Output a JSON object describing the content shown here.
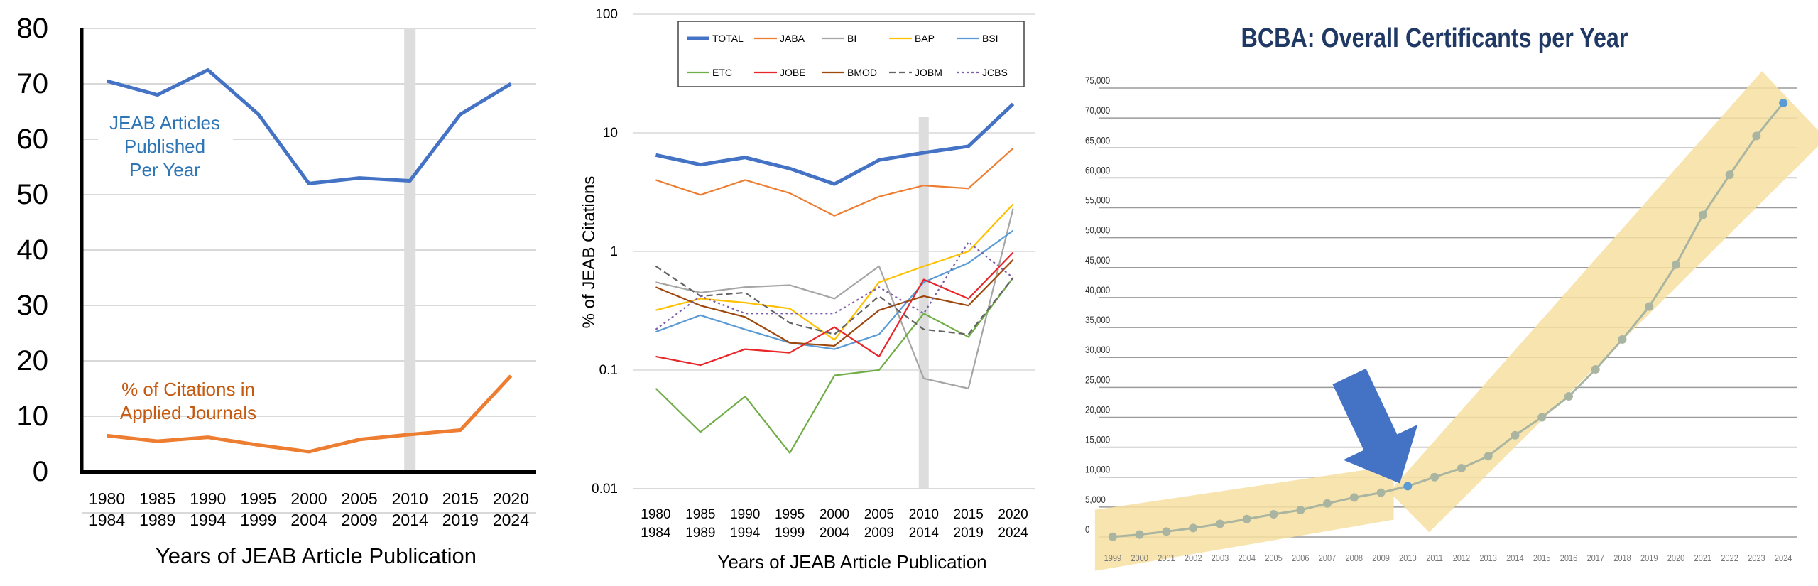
{
  "colors": {
    "jeab_blue": "#4472C4",
    "orange": "#ED7D31",
    "annot_blue": "#2E75B6",
    "annot_orange": "#C55A11",
    "gray": "#A5A5A5",
    "gold": "#FFC000",
    "light_blue": "#5B9BD5",
    "green": "#70AD47",
    "red": "#E8262A",
    "brown": "#9E480E",
    "dark_gray": "#636363",
    "purple": "#7B5EA7",
    "bcba_title": "#1F3864",
    "bcba_point": "#A9B5A0",
    "highlight": "#F7DFA0",
    "arrow": "#4472C4"
  },
  "chart_data": [
    {
      "type": "line",
      "categories": [
        "1980\n1984",
        "1985\n1989",
        "1990\n1994",
        "1995\n1999",
        "2000\n2004",
        "2005\n2009",
        "2010\n2014",
        "2015\n2019",
        "2020\n2024"
      ],
      "category_lines": [
        [
          "1980",
          "1984"
        ],
        [
          "1985",
          "1989"
        ],
        [
          "1990",
          "1994"
        ],
        [
          "1995",
          "1999"
        ],
        [
          "2000",
          "2004"
        ],
        [
          "2005",
          "2009"
        ],
        [
          "2010",
          "2014"
        ],
        [
          "2015",
          "2019"
        ],
        [
          "2020",
          "2024"
        ]
      ],
      "series": [
        {
          "values": [
            70.5,
            68,
            72.5,
            64.5,
            52,
            53,
            52.5,
            64.5,
            70
          ]
        },
        {
          "values": [
            6.5,
            5.5,
            6.2,
            4.8,
            3.6,
            5.8,
            6.7,
            7.5,
            17.3
          ]
        }
      ],
      "yticks": [
        0,
        10,
        20,
        30,
        40,
        50,
        60,
        70,
        80
      ],
      "ylim": [
        0,
        80
      ],
      "xlabel": "Years of JEAB Article Publication",
      "ylabel": "",
      "grid": true,
      "highlight_category": "2010\n2014",
      "annotations": [
        {
          "lines": [
            "JEAB Articles",
            "Published",
            "Per Year"
          ]
        },
        {
          "lines": [
            "% of Citations in",
            "Applied Journals"
          ]
        }
      ]
    },
    {
      "type": "line",
      "y_scale": "log",
      "categories": [
        "1980\n1984",
        "1985\n1989",
        "1990\n1994",
        "1995\n1999",
        "2000\n2004",
        "2005\n2009",
        "2010\n2014",
        "2015\n2019",
        "2020\n2024"
      ],
      "category_lines": [
        [
          "1980",
          "1984"
        ],
        [
          "1985",
          "1989"
        ],
        [
          "1990",
          "1994"
        ],
        [
          "1995",
          "1999"
        ],
        [
          "2000",
          "2004"
        ],
        [
          "2005",
          "2009"
        ],
        [
          "2010",
          "2014"
        ],
        [
          "2015",
          "2019"
        ],
        [
          "2020",
          "2024"
        ]
      ],
      "yticks": [
        0.01,
        0.1,
        1,
        10,
        100
      ],
      "ytick_labels": [
        "0.01",
        "0.1",
        "1",
        "10",
        "100"
      ],
      "ylim": [
        0.01,
        100
      ],
      "xlabel": "Years of JEAB Article Publication",
      "ylabel": "% of JEAB Citations",
      "grid": true,
      "legend_position": "top",
      "highlight_category": "2010\n2014",
      "series": [
        {
          "name": "TOTAL",
          "values": [
            6.5,
            5.4,
            6.2,
            5.0,
            3.7,
            5.9,
            6.8,
            7.7,
            17.5
          ]
        },
        {
          "name": "JABA",
          "values": [
            4.0,
            3.0,
            4.0,
            3.1,
            2.0,
            2.9,
            3.6,
            3.4,
            7.4
          ]
        },
        {
          "name": "BI",
          "values": [
            0.55,
            0.45,
            0.5,
            0.52,
            0.4,
            0.75,
            0.085,
            0.07,
            2.3
          ]
        },
        {
          "name": "BAP",
          "values": [
            0.32,
            0.4,
            0.37,
            0.33,
            0.18,
            0.55,
            0.75,
            1.0,
            2.5
          ]
        },
        {
          "name": "BSI",
          "values": [
            0.21,
            0.29,
            0.22,
            0.17,
            0.15,
            0.2,
            0.55,
            0.8,
            1.5
          ]
        },
        {
          "name": "ETC",
          "values": [
            0.07,
            0.03,
            0.06,
            0.02,
            0.09,
            0.1,
            0.3,
            0.19,
            0.6
          ]
        },
        {
          "name": "JOBE",
          "values": [
            0.13,
            0.11,
            0.15,
            0.14,
            0.23,
            0.13,
            0.58,
            0.4,
            0.98
          ]
        },
        {
          "name": "BMOD",
          "values": [
            0.5,
            0.35,
            0.28,
            0.17,
            0.16,
            0.32,
            0.42,
            0.35,
            0.85
          ]
        },
        {
          "name": "JOBM",
          "values": [
            0.75,
            0.42,
            0.45,
            0.25,
            0.2,
            0.42,
            0.22,
            0.2,
            0.6
          ]
        },
        {
          "name": "JCBS",
          "values": [
            0.22,
            0.42,
            0.3,
            0.3,
            0.3,
            0.5,
            0.3,
            1.2,
            0.6
          ]
        }
      ]
    },
    {
      "type": "line",
      "title": "BCBA: Overall Certificants per Year",
      "categories": [
        "1999",
        "2000",
        "2001",
        "2002",
        "2003",
        "2004",
        "2005",
        "2006",
        "2007",
        "2008",
        "2009",
        "2010",
        "2011",
        "2012",
        "2013",
        "2014",
        "2015",
        "2016",
        "2017",
        "2018",
        "2019",
        "2020",
        "2021",
        "2022",
        "2023",
        "2024"
      ],
      "values": [
        30,
        400,
        900,
        1500,
        2200,
        3000,
        3800,
        4500,
        5600,
        6600,
        7400,
        8500,
        10000,
        11500,
        13500,
        17000,
        20000,
        23500,
        28000,
        33000,
        38500,
        45500,
        53800,
        60500,
        67000,
        72500
      ],
      "yticks": [
        0,
        5000,
        10000,
        15000,
        20000,
        25000,
        30000,
        35000,
        40000,
        45000,
        50000,
        55000,
        60000,
        65000,
        70000,
        75000
      ],
      "ytick_labels": [
        "0",
        "5,000",
        "10,000",
        "15,000",
        "20,000",
        "25,000",
        "30,000",
        "35,000",
        "40,000",
        "45,000",
        "50,000",
        "55,000",
        "60,000",
        "65,000",
        "70,000",
        "75,000"
      ],
      "ylim": [
        0,
        75000
      ],
      "xlabel": "",
      "ylabel": "",
      "grid": true,
      "highlight_bands": [
        [
          "1999",
          "2009"
        ],
        [
          "2010",
          "2024"
        ]
      ],
      "arrow_target": "2010"
    }
  ]
}
